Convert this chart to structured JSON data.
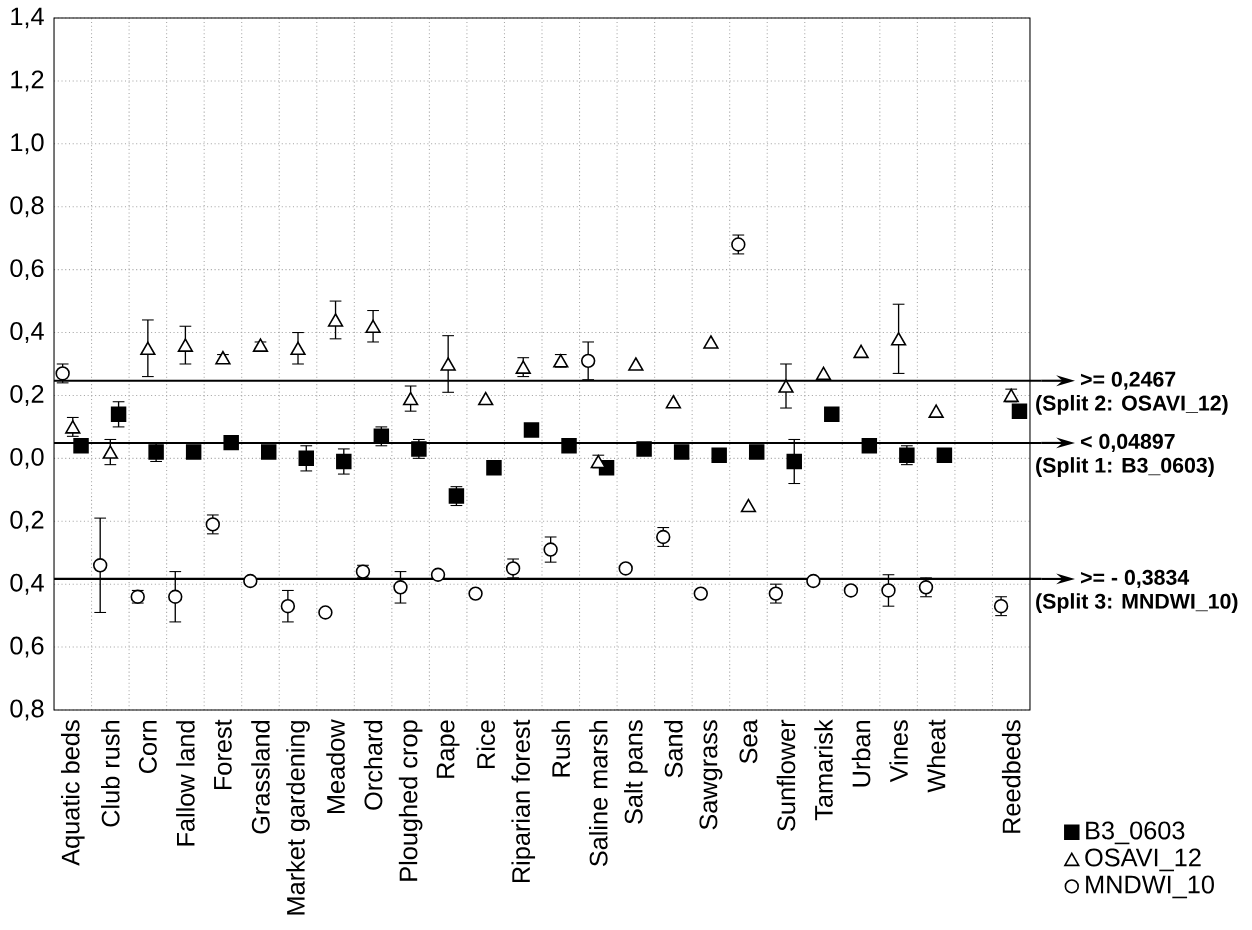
{
  "chart_data": {
    "type": "scatter",
    "categories": [
      "Aquatic beds",
      "Club rush",
      "Corn",
      "Fallow land",
      "Forest",
      "Grassland",
      "Market gardening",
      "Meadow",
      "Orchard",
      "Ploughed crop",
      "Rape",
      "Rice",
      "Riparian forest",
      "Rush",
      "Saline marsh",
      "Salt pans",
      "Sand",
      "Sawgrass",
      "Sea",
      "Sunflower",
      "Tamarisk",
      "Urban",
      "Vines",
      "Wheat",
      null,
      "Reedbeds"
    ],
    "series": [
      {
        "name": "B3_0603",
        "color": "#000000",
        "marker": "square",
        "values": [
          0.04,
          0.14,
          0.02,
          0.02,
          0.05,
          0.02,
          0.0,
          -0.01,
          0.07,
          0.03,
          -0.12,
          -0.03,
          0.09,
          0.04,
          -0.03,
          0.03,
          0.02,
          0.01,
          0.02,
          -0.01,
          0.14,
          0.04,
          0.01,
          0.01,
          null,
          0.15
        ],
        "errors": [
          null,
          0.04,
          0.03,
          null,
          null,
          null,
          0.04,
          0.04,
          0.03,
          0.03,
          0.03,
          null,
          null,
          null,
          null,
          null,
          null,
          null,
          null,
          0.07,
          null,
          null,
          0.03,
          null,
          null,
          null
        ]
      },
      {
        "name": "OSAVI_12",
        "color": "#000000",
        "marker": "triangle",
        "values": [
          0.1,
          0.02,
          0.35,
          0.36,
          0.32,
          0.36,
          0.35,
          0.44,
          0.42,
          0.19,
          0.3,
          0.19,
          0.29,
          0.31,
          -0.01,
          0.3,
          0.18,
          0.37,
          -0.15,
          0.23,
          0.27,
          0.34,
          0.38,
          0.15,
          null,
          0.2
        ],
        "errors": [
          0.03,
          0.04,
          0.09,
          0.06,
          0.01,
          0.01,
          0.05,
          0.06,
          0.05,
          0.04,
          0.09,
          null,
          0.03,
          0.02,
          0.02,
          null,
          null,
          null,
          null,
          0.07,
          null,
          null,
          0.11,
          null,
          null,
          0.02
        ]
      },
      {
        "name": "MNDWI_10",
        "color": "#000000",
        "marker": "circle",
        "values": [
          0.27,
          -0.34,
          -0.44,
          -0.44,
          -0.21,
          -0.39,
          -0.47,
          -0.49,
          -0.36,
          -0.41,
          -0.37,
          -0.43,
          -0.35,
          -0.29,
          0.31,
          -0.35,
          -0.25,
          -0.43,
          0.68,
          -0.43,
          -0.39,
          -0.42,
          -0.42,
          -0.41,
          null,
          -0.47
        ],
        "errors": [
          0.03,
          0.15,
          0.02,
          0.08,
          0.03,
          null,
          0.05,
          null,
          0.02,
          0.05,
          null,
          null,
          0.03,
          0.04,
          0.06,
          null,
          0.03,
          null,
          0.03,
          0.03,
          null,
          null,
          0.05,
          0.03,
          null,
          0.03
        ]
      }
    ],
    "ylim": [
      -0.8,
      1.4
    ],
    "yticks": [
      {
        "value": -0.8,
        "label": "0,8"
      },
      {
        "value": -0.6,
        "label": "0,6"
      },
      {
        "value": -0.4,
        "label": "0,4"
      },
      {
        "value": -0.2,
        "label": "0,2"
      },
      {
        "value": 0,
        "label": "0,0"
      },
      {
        "value": 0.2,
        "label": "0,2"
      },
      {
        "value": 0.4,
        "label": "0,4"
      },
      {
        "value": 0.6,
        "label": "0,6"
      },
      {
        "value": 0.8,
        "label": "0,8"
      },
      {
        "value": 1.0,
        "label": "1,0"
      },
      {
        "value": 1.2,
        "label": "1,2"
      },
      {
        "value": 1.4,
        "label": "1,4"
      }
    ],
    "ref_lines": [
      {
        "axis": "y",
        "value": 0.2467,
        "label": ">= 0,2467"
      },
      {
        "axis": "y",
        "value": 0.04897,
        "label": "< 0,04897"
      },
      {
        "axis": "y",
        "value": -0.3834,
        "label": ">= - 0,3834"
      }
    ],
    "annotations": [
      "(Split 2: OSAVI_12)",
      "(Split 1: B3_0603)",
      "(Split 3: MNDWI_10)"
    ],
    "grid": true,
    "legend": "bottom right"
  }
}
